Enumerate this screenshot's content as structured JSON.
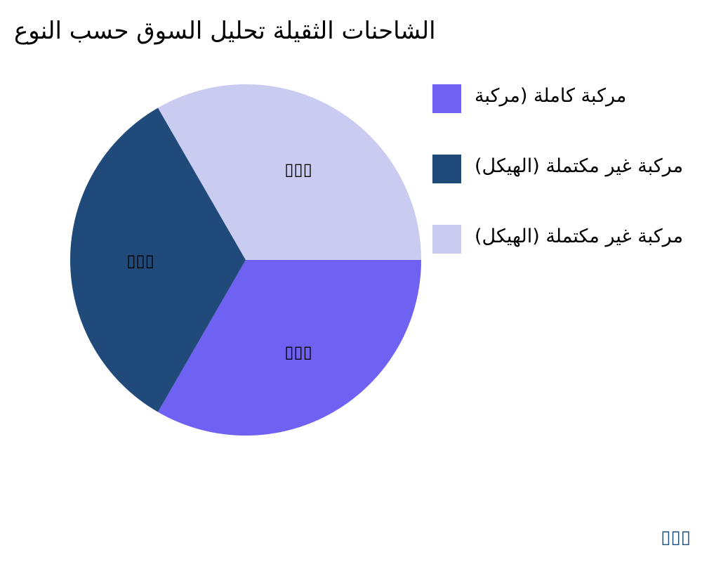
{
  "chart_data": {
    "type": "pie",
    "title": "الشاحنات الثقيلة تحليل السوق حسب النوع",
    "slices": [
      {
        "name": "مركبة كاملة (مركبة",
        "value": 33.33,
        "label": "▯▯▯",
        "color": "#6f61f2"
      },
      {
        "name": "مركبة غير مكتملة (الهيكل)",
        "value": 33.33,
        "label": "▯▯▯",
        "color": "#1f4a7a"
      },
      {
        "name": "مركبة غير مكتملة (الهيكل)",
        "value": 33.33,
        "label": "▯▯▯",
        "color": "#c9cbf0"
      }
    ],
    "legend_position": "right"
  },
  "watermark": "▯▯▯"
}
